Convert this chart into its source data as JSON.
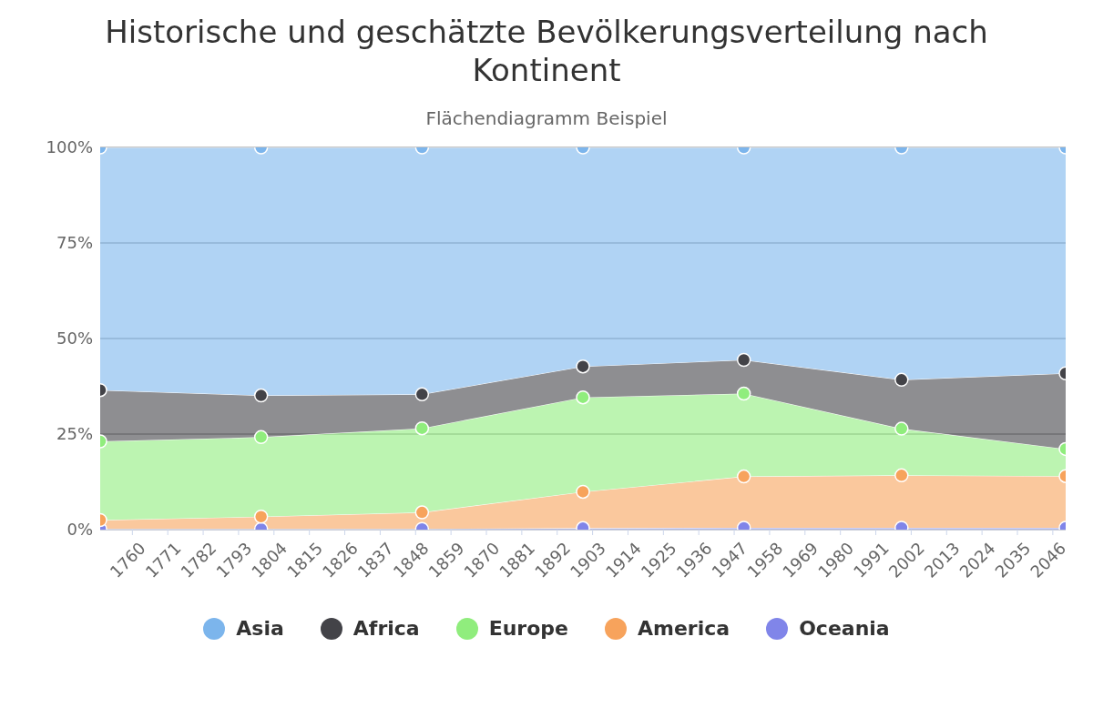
{
  "chart_data": {
    "type": "area",
    "title": "Historische und geschätzte Bevölkerungsverteilung nach Kontinent",
    "subtitle": "Flächendiagramm Beispiel",
    "x": [
      1750,
      1800,
      1850,
      1900,
      1950,
      1999,
      2050
    ],
    "stacked": true,
    "series": [
      {
        "name": "Oceania",
        "color": "#8085e9",
        "values": [
          0.2,
          0.2,
          0.2,
          0.4,
          0.5,
          0.5,
          0.5
        ]
      },
      {
        "name": "America",
        "color": "#f7a35c",
        "values": [
          2.3,
          3.2,
          4.3,
          9.5,
          13.4,
          13.7,
          13.5
        ]
      },
      {
        "name": "Europe",
        "color": "#90ed7d",
        "values": [
          20.6,
          20.8,
          22.0,
          24.7,
          21.7,
          12.2,
          7.1
        ]
      },
      {
        "name": "Africa",
        "color": "#434348",
        "values": [
          13.4,
          10.9,
          8.9,
          8.1,
          8.8,
          12.8,
          19.8
        ]
      },
      {
        "name": "Asia",
        "color": "#7cb5ec",
        "values": [
          63.5,
          64.9,
          64.6,
          57.3,
          55.6,
          60.8,
          59.1
        ]
      }
    ],
    "xlim": [
      1750,
      2050
    ],
    "xticks": [
      1760,
      1771,
      1782,
      1793,
      1804,
      1815,
      1826,
      1837,
      1848,
      1859,
      1870,
      1881,
      1892,
      1903,
      1914,
      1925,
      1936,
      1947,
      1958,
      1969,
      1980,
      1991,
      2002,
      2013,
      2024,
      2035,
      2046
    ],
    "ylim": [
      0,
      100
    ],
    "yticks": [
      {
        "value": 0,
        "label": "0%"
      },
      {
        "value": 25,
        "label": "25%"
      },
      {
        "value": 50,
        "label": "50%"
      },
      {
        "value": 75,
        "label": "75%"
      },
      {
        "value": 100,
        "label": "100%"
      }
    ],
    "grid": "y",
    "legend": "bottom",
    "marker": "circle"
  }
}
